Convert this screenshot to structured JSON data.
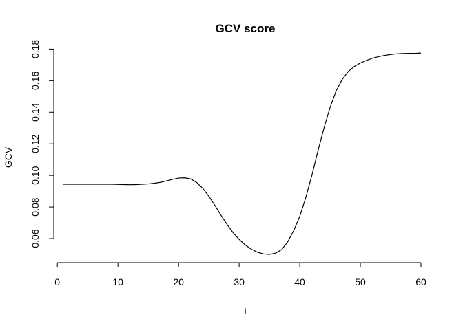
{
  "chart_data": {
    "type": "line",
    "title": "GCV score",
    "xlabel": "i",
    "ylabel": "GCV",
    "xlim": [
      1,
      60
    ],
    "ylim": [
      0.05,
      0.178
    ],
    "xticks": [
      0,
      10,
      20,
      30,
      40,
      50,
      60
    ],
    "xtick_labels": [
      "0",
      "10",
      "20",
      "30",
      "40",
      "50",
      "60"
    ],
    "yticks": [
      0.06,
      0.08,
      0.1,
      0.12,
      0.14,
      0.16,
      0.18
    ],
    "ytick_labels": [
      "0.06",
      "0.08",
      "0.10",
      "0.12",
      "0.14",
      "0.16",
      "0.18"
    ],
    "series": [
      {
        "name": "GCV",
        "color": "#000000",
        "x": [
          1,
          2,
          3,
          4,
          5,
          6,
          7,
          8,
          9,
          10,
          11,
          12,
          13,
          14,
          15,
          16,
          17,
          18,
          19,
          20,
          21,
          22,
          23,
          24,
          25,
          26,
          27,
          28,
          29,
          30,
          31,
          32,
          33,
          34,
          35,
          36,
          37,
          38,
          39,
          40,
          41,
          42,
          43,
          44,
          45,
          46,
          47,
          48,
          49,
          50,
          51,
          52,
          53,
          54,
          55,
          56,
          57,
          58,
          59,
          60
        ],
        "y": [
          0.0944,
          0.0944,
          0.0944,
          0.0944,
          0.0944,
          0.0944,
          0.0944,
          0.0944,
          0.0944,
          0.0943,
          0.0942,
          0.0941,
          0.0942,
          0.0944,
          0.0946,
          0.095,
          0.0956,
          0.0965,
          0.0975,
          0.0983,
          0.0985,
          0.0978,
          0.0955,
          0.0918,
          0.0868,
          0.081,
          0.0748,
          0.069,
          0.0637,
          0.0595,
          0.056,
          0.0533,
          0.0514,
          0.0503,
          0.05,
          0.0508,
          0.053,
          0.0578,
          0.065,
          0.074,
          0.086,
          0.1,
          0.1155,
          0.13,
          0.143,
          0.1535,
          0.1608,
          0.1658,
          0.169,
          0.1712,
          0.1728,
          0.1742,
          0.1752,
          0.176,
          0.1766,
          0.177,
          0.1772,
          0.1773,
          0.1773,
          0.1775
        ]
      }
    ]
  }
}
